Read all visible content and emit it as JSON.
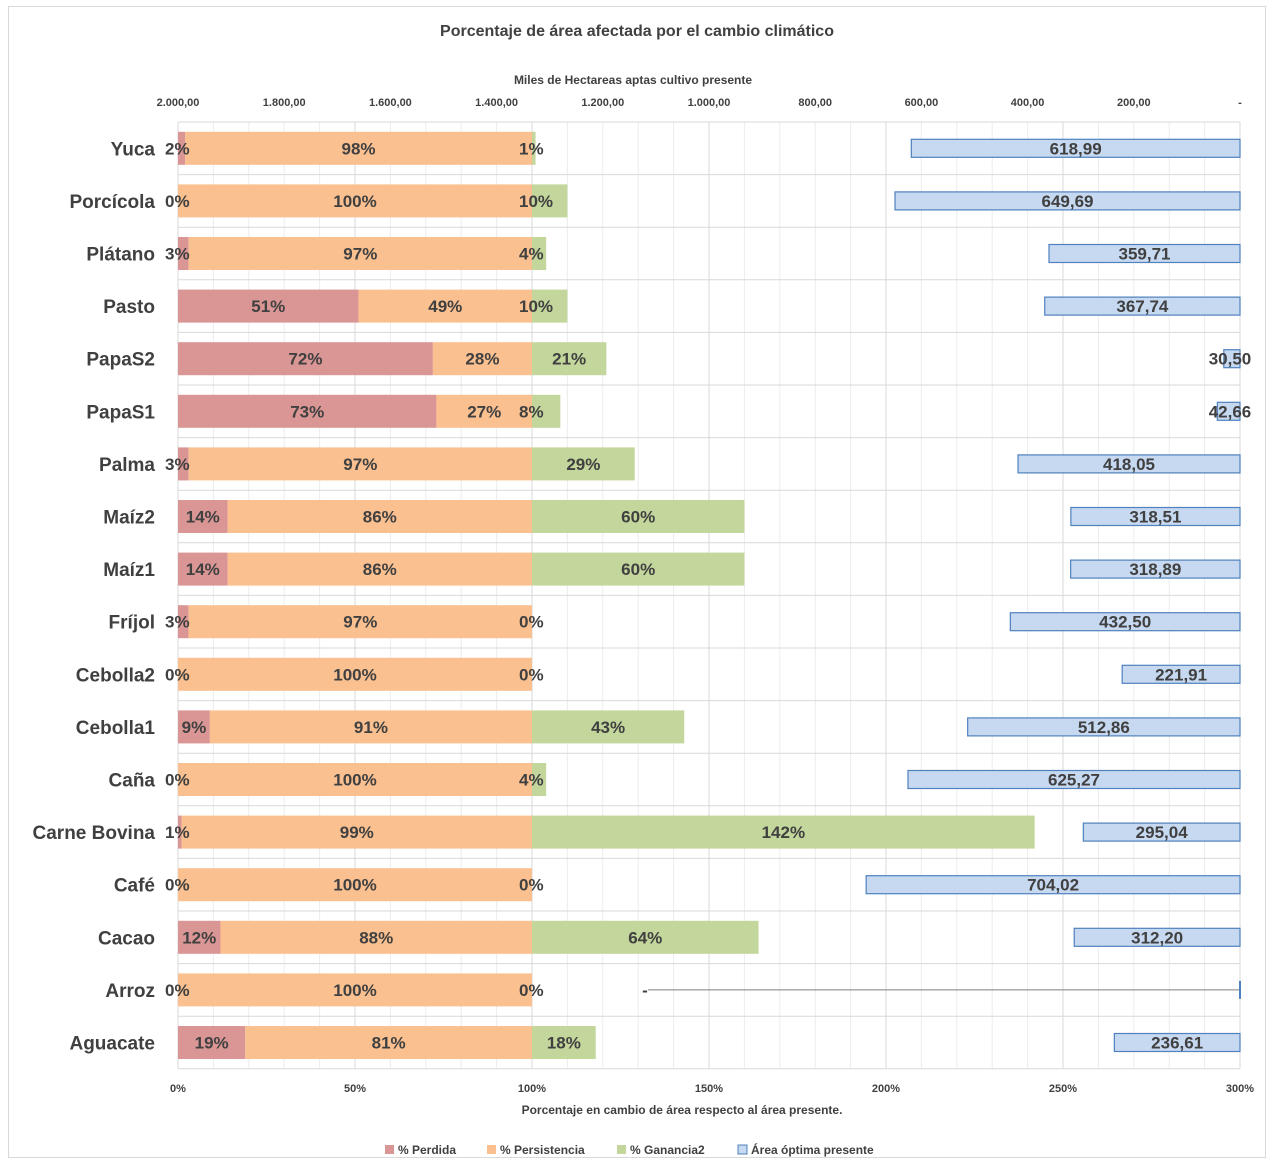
{
  "chart_data": {
    "type": "bar",
    "title": "Porcentaje de área afectada por el cambio climático",
    "x_top_label": "Miles de Hectareas aptas cultivo presente",
    "x_top_range": [
      2000,
      0
    ],
    "x_top_ticks": [
      "2.000,00",
      "1.800,00",
      "1.600,00",
      "1.400,00",
      "1.200,00",
      "1.000,00",
      "800,00",
      "600,00",
      "400,00",
      "200,00",
      "-"
    ],
    "x_bottom_label": "Porcentaje en cambio de área respecto al área presente.",
    "x_bottom_range": [
      0,
      300
    ],
    "x_bottom_ticks": [
      "0%",
      "50%",
      "100%",
      "150%",
      "200%",
      "250%",
      "300%"
    ],
    "legend_position": "bottom",
    "series": [
      {
        "name": "% Perdida",
        "color": "#d99694"
      },
      {
        "name": "% Persistencia",
        "color": "#fac090"
      },
      {
        "name": "% Ganancia2",
        "color": "#c3d69b"
      },
      {
        "name": "Área óptima presente",
        "color": "#c6d9f1",
        "border": "#4f81bd"
      }
    ],
    "categories": [
      {
        "name": "Yuca",
        "perdida": 2,
        "persistencia": 98,
        "ganancia": 1,
        "area": 618.99,
        "perdida_label": "2%",
        "persistencia_label": "98%",
        "ganancia_label": "1%",
        "area_label": "618,99"
      },
      {
        "name": "Porcícola",
        "perdida": 0,
        "persistencia": 100,
        "ganancia": 10,
        "area": 649.69,
        "perdida_label": "0%",
        "persistencia_label": "100%",
        "ganancia_label": "10%",
        "area_label": "649,69"
      },
      {
        "name": "Plátano",
        "perdida": 3,
        "persistencia": 97,
        "ganancia": 4,
        "area": 359.71,
        "perdida_label": "3%",
        "persistencia_label": "97%",
        "ganancia_label": "4%",
        "area_label": "359,71"
      },
      {
        "name": "Pasto",
        "perdida": 51,
        "persistencia": 49,
        "ganancia": 10,
        "area": 367.74,
        "perdida_label": "51%",
        "persistencia_label": "49%",
        "ganancia_label": "10%",
        "area_label": "367,74"
      },
      {
        "name": "PapaS2",
        "perdida": 72,
        "persistencia": 28,
        "ganancia": 21,
        "area": 30.5,
        "perdida_label": "72%",
        "persistencia_label": "28%",
        "ganancia_label": "21%",
        "area_label": "30,50"
      },
      {
        "name": "PapaS1",
        "perdida": 73,
        "persistencia": 27,
        "ganancia": 8,
        "area": 42.66,
        "perdida_label": "73%",
        "persistencia_label": "27%",
        "ganancia_label": "8%",
        "area_label": "42,66"
      },
      {
        "name": "Palma",
        "perdida": 3,
        "persistencia": 97,
        "ganancia": 29,
        "area": 418.05,
        "perdida_label": "3%",
        "persistencia_label": "97%",
        "ganancia_label": "29%",
        "area_label": "418,05"
      },
      {
        "name": "Maíz2",
        "perdida": 14,
        "persistencia": 86,
        "ganancia": 60,
        "area": 318.51,
        "perdida_label": "14%",
        "persistencia_label": "86%",
        "ganancia_label": "60%",
        "area_label": "318,51"
      },
      {
        "name": "Maíz1",
        "perdida": 14,
        "persistencia": 86,
        "ganancia": 60,
        "area": 318.89,
        "perdida_label": "14%",
        "persistencia_label": "86%",
        "ganancia_label": "60%",
        "area_label": "318,89"
      },
      {
        "name": "Fríjol",
        "perdida": 3,
        "persistencia": 97,
        "ganancia": 0,
        "area": 432.5,
        "perdida_label": "3%",
        "persistencia_label": "97%",
        "ganancia_label": "0%",
        "area_label": "432,50"
      },
      {
        "name": "Cebolla2",
        "perdida": 0,
        "persistencia": 100,
        "ganancia": 0,
        "area": 221.91,
        "perdida_label": "0%",
        "persistencia_label": "100%",
        "ganancia_label": "0%",
        "area_label": "221,91"
      },
      {
        "name": "Cebolla1",
        "perdida": 9,
        "persistencia": 91,
        "ganancia": 43,
        "area": 512.86,
        "perdida_label": "9%",
        "persistencia_label": "91%",
        "ganancia_label": "43%",
        "area_label": "512,86"
      },
      {
        "name": "Caña",
        "perdida": 0,
        "persistencia": 100,
        "ganancia": 4,
        "area": 625.27,
        "perdida_label": "0%",
        "persistencia_label": "100%",
        "ganancia_label": "4%",
        "area_label": "625,27"
      },
      {
        "name": "Carne Bovina",
        "perdida": 1,
        "persistencia": 99,
        "ganancia": 142,
        "area": 295.04,
        "perdida_label": "1%",
        "persistencia_label": "99%",
        "ganancia_label": "142%",
        "area_label": "295,04"
      },
      {
        "name": "Café",
        "perdida": 0,
        "persistencia": 100,
        "ganancia": 0,
        "area": 704.02,
        "perdida_label": "0%",
        "persistencia_label": "100%",
        "ganancia_label": "0%",
        "area_label": "704,02"
      },
      {
        "name": "Cacao",
        "perdida": 12,
        "persistencia": 88,
        "ganancia": 64,
        "area": 312.2,
        "perdida_label": "12%",
        "persistencia_label": "88%",
        "ganancia_label": "64%",
        "area_label": "312,20"
      },
      {
        "name": "Arroz",
        "perdida": 0,
        "persistencia": 100,
        "ganancia": 0,
        "area": 0,
        "perdida_label": "0%",
        "persistencia_label": "100%",
        "ganancia_label": "0%",
        "area_label": "-"
      },
      {
        "name": "Aguacate",
        "perdida": 19,
        "persistencia": 81,
        "ganancia": 18,
        "area": 236.61,
        "perdida_label": "19%",
        "persistencia_label": "81%",
        "ganancia_label": "18%",
        "area_label": "236,61"
      }
    ]
  }
}
